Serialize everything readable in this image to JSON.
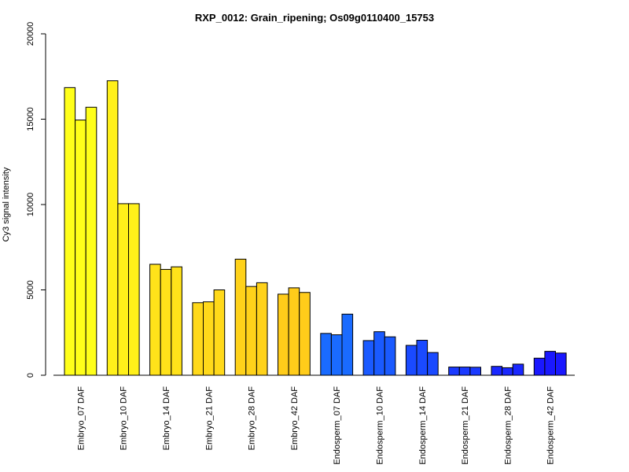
{
  "chart_data": {
    "type": "bar",
    "title": "RXP_0012: Grain_ripening; Os09g0110400_15753",
    "xlabel": "",
    "ylabel": "Cy3 signal intensity",
    "ylim": [
      0,
      20000
    ],
    "yticks": [
      0,
      5000,
      10000,
      15000,
      20000
    ],
    "grid": false,
    "categories": [
      "Embryo_07 DAF",
      "Embryo_10 DAF",
      "Embryo_14 DAF",
      "Embryo_21 DAF",
      "Embryo_28 DAF",
      "Embryo_42 DAF",
      "Endosperm_07 DAF",
      "Endosperm_10 DAF",
      "Endosperm_14 DAF",
      "Endosperm_21 DAF",
      "Endosperm_28 DAF",
      "Endosperm_42 DAF"
    ],
    "colors": [
      "#FFFF1A",
      "#FFF01A",
      "#FFE21A",
      "#FFD91A",
      "#FFD21A",
      "#FFCC1A",
      "#1A6BFF",
      "#1A5AFF",
      "#1A4AFF",
      "#1A3AFF",
      "#1A28FF",
      "#1A18FF"
    ],
    "replicates": [
      [
        16850,
        14950,
        15700
      ],
      [
        17250,
        10050,
        10050
      ],
      [
        6500,
        6200,
        6350
      ],
      [
        4250,
        4300,
        5000
      ],
      [
        6800,
        5200,
        5420
      ],
      [
        4750,
        5120,
        4850
      ],
      [
        2450,
        2370,
        3580
      ],
      [
        2030,
        2550,
        2250
      ],
      [
        1750,
        2050,
        1330
      ],
      [
        480,
        480,
        470
      ],
      [
        520,
        440,
        650
      ],
      [
        1000,
        1400,
        1300
      ]
    ]
  }
}
